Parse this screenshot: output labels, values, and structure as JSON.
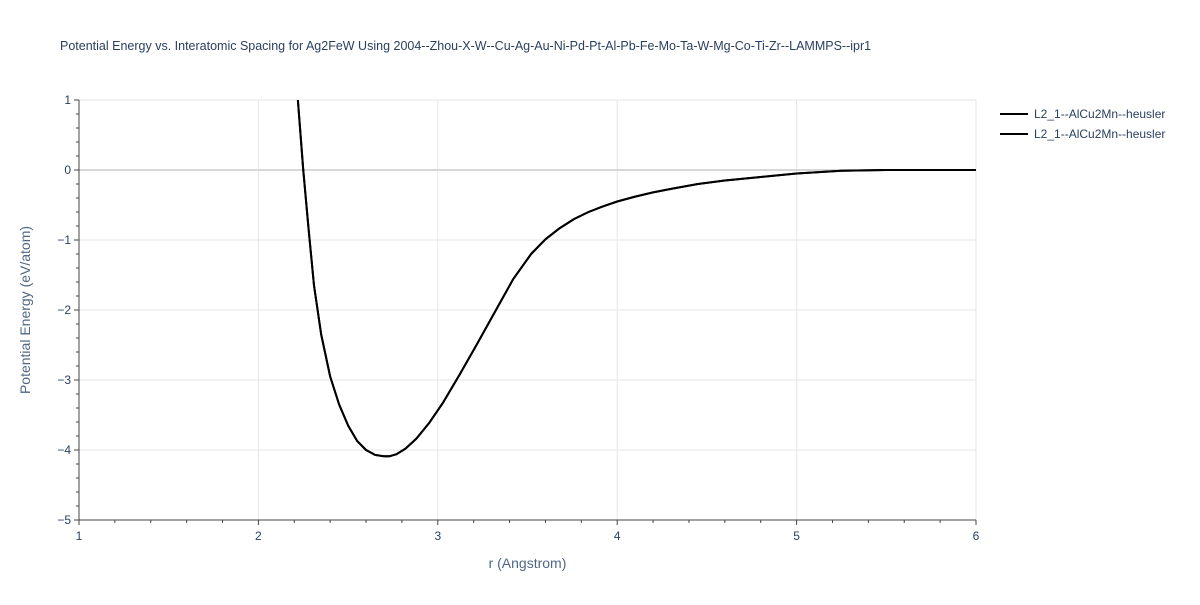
{
  "chart_data": {
    "type": "line",
    "title": "Potential Energy vs. Interatomic Spacing for Ag2FeW Using 2004--Zhou-X-W--Cu-Ag-Au-Ni-Pd-Pt-Al-Pb-Fe-Mo-Ta-W-Mg-Co-Ti-Zr--LAMMPS--ipr1",
    "xlabel": "r (Angstrom)",
    "ylabel": "Potential Energy (eV/atom)",
    "xlim": [
      1,
      6
    ],
    "ylim": [
      -5,
      1
    ],
    "x_ticks": [
      1,
      2,
      3,
      4,
      5,
      6
    ],
    "x_tick_labels": [
      "1",
      "2",
      "3",
      "4",
      "5",
      "6"
    ],
    "y_ticks": [
      1,
      0,
      -1,
      -2,
      -3,
      -4,
      -5
    ],
    "y_tick_labels": [
      "1",
      "0",
      "−1",
      "−2",
      "−3",
      "−4",
      "−5"
    ],
    "grid": true,
    "legend_position": "top-right",
    "series": [
      {
        "name": "L2_1--AlCu2Mn--heusler",
        "color": "#000000",
        "x": [
          2.22,
          2.25,
          2.28,
          2.31,
          2.35,
          2.4,
          2.45,
          2.5,
          2.55,
          2.6,
          2.65,
          2.7,
          2.73,
          2.77,
          2.82,
          2.88,
          2.95,
          3.03,
          3.12,
          3.22,
          3.32,
          3.42,
          3.52,
          3.6,
          3.68,
          3.76,
          3.84,
          3.92,
          4.0,
          4.1,
          4.2,
          4.3,
          4.45,
          4.6,
          4.8,
          5.0,
          5.25,
          5.5,
          5.8,
          6.0
        ],
        "y": [
          1.0,
          0.0,
          -0.85,
          -1.65,
          -2.35,
          -2.95,
          -3.35,
          -3.65,
          -3.87,
          -4.0,
          -4.07,
          -4.09,
          -4.09,
          -4.06,
          -3.98,
          -3.84,
          -3.62,
          -3.32,
          -2.93,
          -2.48,
          -2.02,
          -1.56,
          -1.2,
          -0.99,
          -0.83,
          -0.7,
          -0.6,
          -0.52,
          -0.45,
          -0.38,
          -0.32,
          -0.27,
          -0.2,
          -0.15,
          -0.1,
          -0.05,
          -0.01,
          0.0,
          0.0,
          0.0
        ]
      },
      {
        "name": "L2_1--AlCu2Mn--heusler",
        "color": "#000000",
        "x": [
          2.22,
          2.25,
          2.28,
          2.31,
          2.35,
          2.4,
          2.45,
          2.5,
          2.55,
          2.6,
          2.65,
          2.7,
          2.73,
          2.77,
          2.82,
          2.88,
          2.95,
          3.03,
          3.12,
          3.22,
          3.32,
          3.42,
          3.52,
          3.6,
          3.68,
          3.76,
          3.84,
          3.92,
          4.0,
          4.1,
          4.2,
          4.3,
          4.45,
          4.6,
          4.8,
          5.0,
          5.25,
          5.5,
          5.8,
          6.0
        ],
        "y": [
          1.0,
          0.0,
          -0.85,
          -1.65,
          -2.35,
          -2.95,
          -3.35,
          -3.65,
          -3.87,
          -4.0,
          -4.07,
          -4.09,
          -4.09,
          -4.06,
          -3.98,
          -3.84,
          -3.62,
          -3.32,
          -2.93,
          -2.48,
          -2.02,
          -1.56,
          -1.2,
          -0.99,
          -0.83,
          -0.7,
          -0.6,
          -0.52,
          -0.45,
          -0.38,
          -0.32,
          -0.27,
          -0.2,
          -0.15,
          -0.1,
          -0.05,
          -0.01,
          0.0,
          0.0,
          0.0
        ]
      }
    ]
  }
}
